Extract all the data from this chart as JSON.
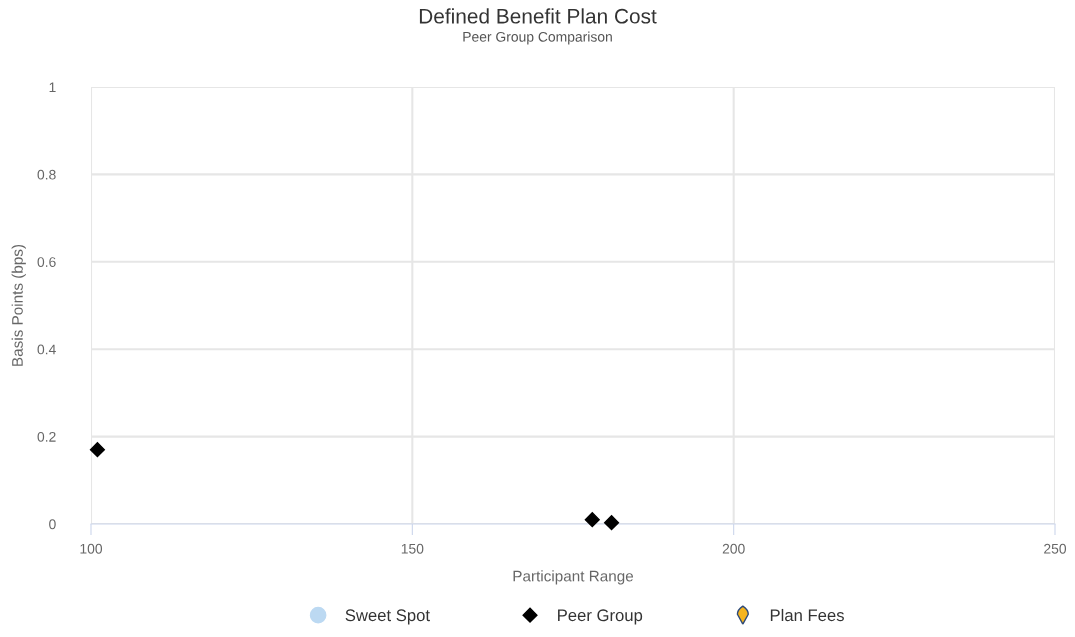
{
  "chart_data": {
    "type": "scatter",
    "title": "Defined Benefit Plan Cost",
    "subtitle": "Peer Group Comparison",
    "xlabel": "Participant Range",
    "ylabel": "Basis Points (bps)",
    "xlim": [
      100,
      250
    ],
    "xticks": [
      100,
      150,
      200,
      250
    ],
    "ylim": [
      0,
      1
    ],
    "yticks": [
      0,
      0.2,
      0.4,
      0.6,
      0.8,
      1
    ],
    "grid": true,
    "legend": "bottom",
    "series": [
      {
        "name": "Sweet Spot",
        "color": "#bcd9f2",
        "marker": "circle"
      },
      {
        "name": "Peer Group",
        "color": "#000000",
        "marker": "diamond",
        "x": [
          101,
          178,
          181
        ],
        "values": [
          0.17,
          0.01,
          0.003
        ]
      },
      {
        "name": "Plan Fees",
        "color": "#f5b41e",
        "marker": "pin"
      }
    ]
  }
}
